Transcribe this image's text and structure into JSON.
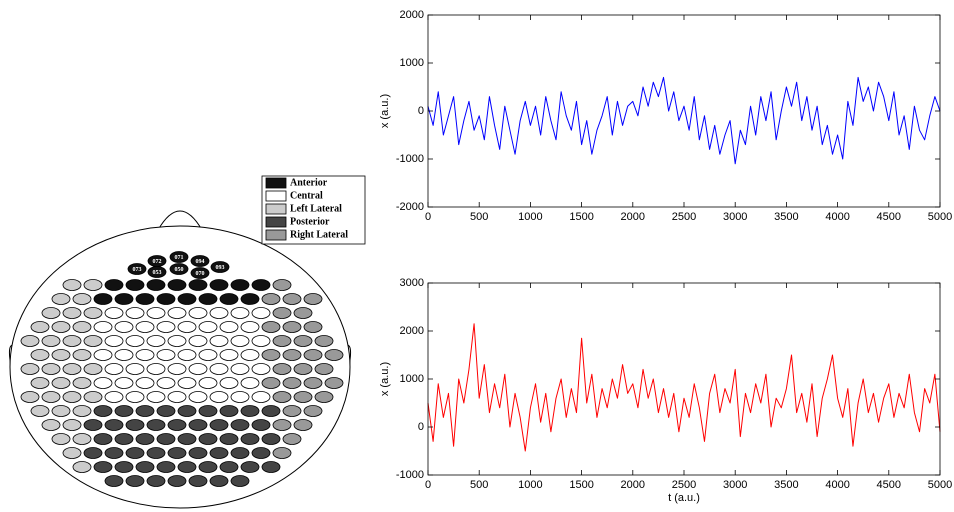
{
  "chart_data": [
    {
      "type": "line",
      "color": "#0000ff",
      "ylabel": "x (a.u.)",
      "xlim": [
        0,
        5000
      ],
      "ylim": [
        -2000,
        2000
      ],
      "xticks": [
        0,
        500,
        1000,
        1500,
        2000,
        2500,
        3000,
        3500,
        4000,
        4500,
        5000
      ],
      "yticks": [
        -2000,
        -1000,
        0,
        1000,
        2000
      ],
      "x": [
        0,
        50,
        100,
        150,
        200,
        250,
        300,
        350,
        400,
        450,
        500,
        550,
        600,
        650,
        700,
        750,
        800,
        850,
        900,
        950,
        1000,
        1050,
        1100,
        1150,
        1200,
        1250,
        1300,
        1350,
        1400,
        1450,
        1500,
        1550,
        1600,
        1650,
        1700,
        1750,
        1800,
        1850,
        1900,
        1950,
        2000,
        2050,
        2100,
        2150,
        2200,
        2250,
        2300,
        2350,
        2400,
        2450,
        2500,
        2550,
        2600,
        2650,
        2700,
        2750,
        2800,
        2850,
        2900,
        2950,
        3000,
        3050,
        3100,
        3150,
        3200,
        3250,
        3300,
        3350,
        3400,
        3450,
        3500,
        3550,
        3600,
        3650,
        3700,
        3750,
        3800,
        3850,
        3900,
        3950,
        4000,
        4050,
        4100,
        4150,
        4200,
        4250,
        4300,
        4350,
        4400,
        4450,
        4500,
        4550,
        4600,
        4650,
        4700,
        4750,
        4800,
        4850,
        4900,
        4950,
        5000
      ],
      "values": [
        100,
        -300,
        400,
        -500,
        -100,
        300,
        -700,
        -200,
        200,
        -400,
        -100,
        -600,
        300,
        -300,
        -800,
        100,
        -400,
        -900,
        -200,
        200,
        -300,
        100,
        -500,
        300,
        -200,
        -600,
        400,
        -100,
        -400,
        200,
        -700,
        -200,
        -900,
        -400,
        -100,
        300,
        -500,
        200,
        -300,
        100,
        200,
        -100,
        500,
        100,
        600,
        300,
        700,
        0,
        400,
        -200,
        100,
        -400,
        300,
        -600,
        -100,
        -800,
        -300,
        -900,
        -500,
        -200,
        -1100,
        -400,
        -700,
        100,
        -500,
        300,
        -200,
        400,
        -600,
        0,
        500,
        100,
        600,
        -200,
        300,
        -400,
        100,
        -700,
        -300,
        -900,
        -500,
        -1000,
        200,
        -300,
        700,
        200,
        500,
        0,
        600,
        300,
        -200,
        400,
        -500,
        -100,
        -800,
        100,
        -400,
        -600,
        -100,
        300,
        0
      ]
    },
    {
      "type": "line",
      "color": "#ff0000",
      "ylabel": "x (a.u.)",
      "xlabel": "t (a.u.)",
      "xlim": [
        0,
        5000
      ],
      "ylim": [
        -1000,
        3000
      ],
      "xticks": [
        0,
        500,
        1000,
        1500,
        2000,
        2500,
        3000,
        3500,
        4000,
        4500,
        5000
      ],
      "yticks": [
        -1000,
        0,
        1000,
        2000,
        3000
      ],
      "x": [
        0,
        50,
        100,
        150,
        200,
        250,
        300,
        350,
        400,
        450,
        500,
        550,
        600,
        650,
        700,
        750,
        800,
        850,
        900,
        950,
        1000,
        1050,
        1100,
        1150,
        1200,
        1250,
        1300,
        1350,
        1400,
        1450,
        1500,
        1550,
        1600,
        1650,
        1700,
        1750,
        1800,
        1850,
        1900,
        1950,
        2000,
        2050,
        2100,
        2150,
        2200,
        2250,
        2300,
        2350,
        2400,
        2450,
        2500,
        2550,
        2600,
        2650,
        2700,
        2750,
        2800,
        2850,
        2900,
        2950,
        3000,
        3050,
        3100,
        3150,
        3200,
        3250,
        3300,
        3350,
        3400,
        3450,
        3500,
        3550,
        3600,
        3650,
        3700,
        3750,
        3800,
        3850,
        3900,
        3950,
        4000,
        4050,
        4100,
        4150,
        4200,
        4250,
        4300,
        4350,
        4400,
        4450,
        4500,
        4550,
        4600,
        4650,
        4700,
        4750,
        4800,
        4850,
        4900,
        4950,
        5000
      ],
      "values": [
        500,
        -300,
        900,
        200,
        700,
        -400,
        1000,
        500,
        1200,
        2150,
        600,
        1300,
        300,
        900,
        400,
        1100,
        0,
        700,
        200,
        -500,
        400,
        900,
        100,
        700,
        -100,
        600,
        1000,
        200,
        800,
        300,
        1850,
        500,
        1100,
        200,
        800,
        400,
        1000,
        600,
        1300,
        700,
        900,
        400,
        1200,
        600,
        1000,
        300,
        800,
        200,
        700,
        -100,
        600,
        200,
        900,
        400,
        -300,
        700,
        1100,
        300,
        800,
        500,
        1200,
        -200,
        700,
        300,
        900,
        500,
        1100,
        0,
        600,
        400,
        800,
        1500,
        300,
        700,
        100,
        900,
        -200,
        600,
        1000,
        1500,
        600,
        200,
        800,
        -400,
        500,
        1000,
        300,
        700,
        100,
        600,
        900,
        200,
        700,
        400,
        1100,
        300,
        -100,
        800,
        500,
        1100,
        -100
      ]
    }
  ],
  "head_map": {
    "legend": [
      {
        "name": "Anterior",
        "color": "#111111"
      },
      {
        "name": "Central",
        "color": "#ffffff"
      },
      {
        "name": "Left Lateral",
        "color": "#cccccc"
      },
      {
        "name": "Posterior",
        "color": "#444444"
      },
      {
        "name": "Right Lateral",
        "color": "#999999"
      }
    ],
    "electrodes": [
      {
        "label": "072",
        "group": "Anterior"
      },
      {
        "label": "071",
        "group": "Anterior"
      },
      {
        "label": "094",
        "group": "Anterior"
      },
      {
        "label": "073",
        "group": "Anterior"
      },
      {
        "label": "053",
        "group": "Anterior"
      },
      {
        "label": "050",
        "group": "Anterior"
      },
      {
        "label": "070",
        "group": "Anterior"
      },
      {
        "label": "093",
        "group": "Anterior"
      }
    ]
  }
}
